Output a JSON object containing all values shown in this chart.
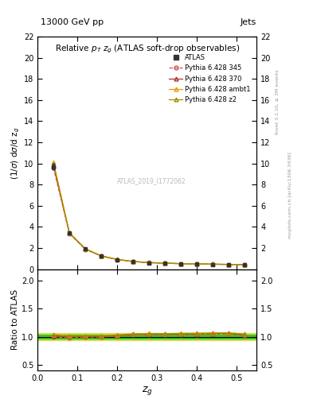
{
  "title_top": "13000 GeV pp",
  "title_right": "Jets",
  "plot_title": "Relative p$_T$ z$_g$ (ATLAS soft-drop observables)",
  "watermark": "ATLAS_2019_I1772062",
  "right_label1": "Rivet 3.1.10, ≥ 3M events",
  "right_label2": "mcplots.cern.ch [arXiv:1306.3436]",
  "xdata": [
    0.04,
    0.08,
    0.12,
    0.16,
    0.2,
    0.24,
    0.28,
    0.32,
    0.36,
    0.4,
    0.44,
    0.48,
    0.52
  ],
  "atlas_y": [
    9.7,
    3.4,
    1.9,
    1.25,
    0.9,
    0.7,
    0.6,
    0.55,
    0.5,
    0.48,
    0.45,
    0.43,
    0.42
  ],
  "atlas_yerr": [
    0.25,
    0.1,
    0.06,
    0.04,
    0.03,
    0.025,
    0.02,
    0.02,
    0.018,
    0.018,
    0.016,
    0.016,
    0.016
  ],
  "pythia345_y": [
    9.6,
    3.35,
    1.88,
    1.24,
    0.91,
    0.72,
    0.62,
    0.57,
    0.52,
    0.5,
    0.47,
    0.45,
    0.43
  ],
  "pythia370_y": [
    9.8,
    3.42,
    1.91,
    1.26,
    0.92,
    0.73,
    0.63,
    0.575,
    0.525,
    0.505,
    0.475,
    0.455,
    0.435
  ],
  "pythia_ambt1_y": [
    10.1,
    3.45,
    1.93,
    1.27,
    0.93,
    0.735,
    0.635,
    0.58,
    0.53,
    0.51,
    0.48,
    0.46,
    0.44
  ],
  "pythia_z2_y": [
    10.0,
    3.43,
    1.92,
    1.265,
    0.925,
    0.732,
    0.632,
    0.578,
    0.528,
    0.508,
    0.478,
    0.458,
    0.438
  ],
  "ratio_345": [
    0.99,
    0.985,
    0.99,
    0.993,
    1.01,
    1.03,
    1.03,
    1.04,
    1.04,
    1.04,
    1.045,
    1.05,
    1.024
  ],
  "ratio_370": [
    1.01,
    1.006,
    1.005,
    1.008,
    1.022,
    1.043,
    1.05,
    1.045,
    1.05,
    1.052,
    1.056,
    1.058,
    1.036
  ],
  "ratio_ambt1": [
    1.04,
    1.015,
    1.016,
    1.016,
    1.033,
    1.05,
    1.058,
    1.055,
    1.06,
    1.062,
    1.067,
    1.07,
    1.048
  ],
  "ratio_z2": [
    1.03,
    1.009,
    1.011,
    1.012,
    1.028,
    1.046,
    1.053,
    1.051,
    1.056,
    1.058,
    1.063,
    1.065,
    1.043
  ],
  "color_345": "#d45050",
  "color_370": "#b03030",
  "color_ambt1": "#e0a000",
  "color_z2": "#a09000",
  "color_atlas": "#333333",
  "band_green_inner": "#00bb00",
  "band_yellow_outer": "#cccc00",
  "xlim": [
    0.0,
    0.55
  ],
  "ylim_main": [
    0.0,
    22.0
  ],
  "ylim_ratio": [
    0.4,
    2.2
  ],
  "yticks_main": [
    0,
    2,
    4,
    6,
    8,
    10,
    12,
    14,
    16,
    18,
    20,
    22
  ],
  "yticks_ratio": [
    0.5,
    1.0,
    1.5,
    2.0
  ],
  "xticks": [
    0.0,
    0.1,
    0.2,
    0.3,
    0.4,
    0.5
  ]
}
